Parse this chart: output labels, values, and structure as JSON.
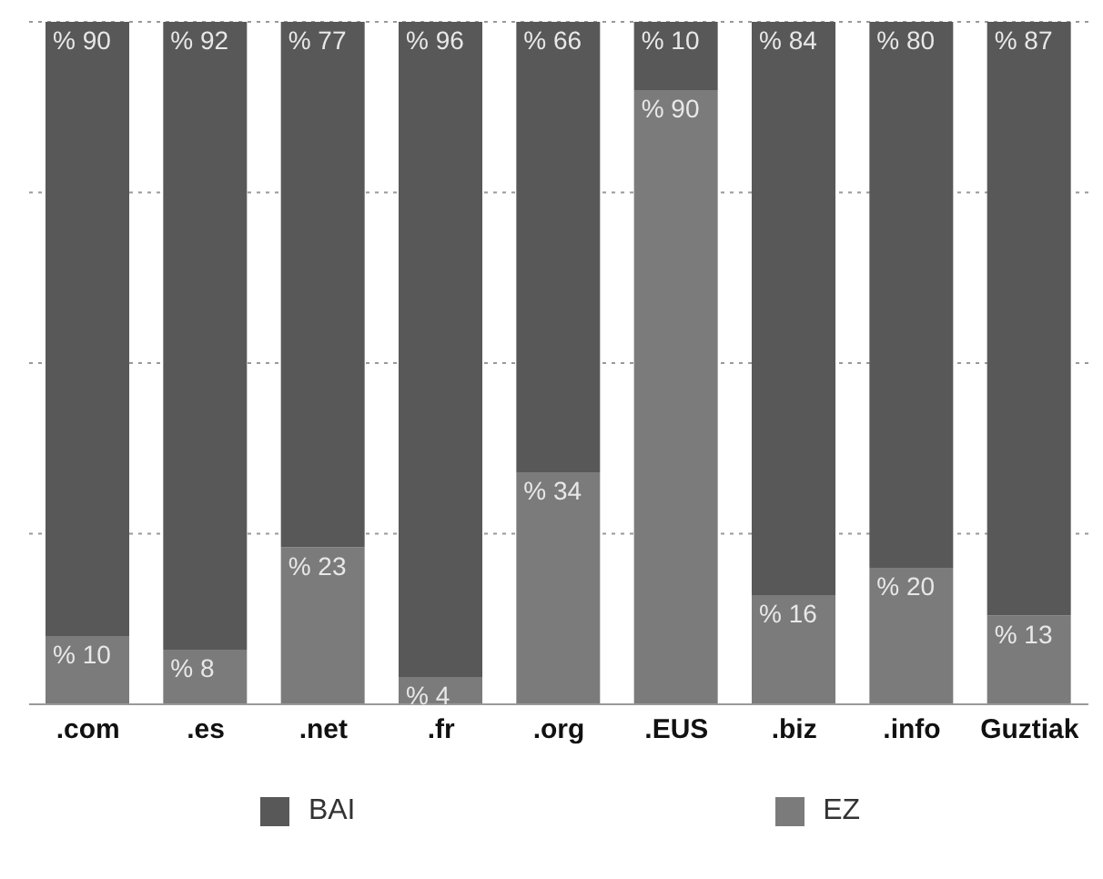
{
  "chart_data": {
    "type": "bar",
    "stacked": true,
    "categories": [
      ".com",
      ".es",
      ".net",
      ".fr",
      ".org",
      ".EUS",
      ".biz",
      ".info",
      "Guztiak"
    ],
    "series": [
      {
        "name": "EZ",
        "color": "#7b7b7b",
        "values": [
          10,
          8,
          23,
          4,
          34,
          90,
          16,
          20,
          13
        ],
        "value_labels": [
          "% 10",
          "% 8",
          "% 23",
          "% 4",
          "% 34",
          "% 90",
          "% 16",
          "% 20",
          "% 13"
        ]
      },
      {
        "name": "BAI",
        "color": "#585858",
        "values": [
          90,
          92,
          77,
          96,
          66,
          10,
          84,
          80,
          87
        ],
        "value_labels": [
          "% 90",
          "% 92",
          "% 77",
          "% 96",
          "% 66",
          "% 10",
          "% 84",
          "% 80",
          "% 87"
        ]
      }
    ],
    "ylim": [
      0,
      100
    ],
    "yticks": [
      0,
      25,
      50,
      75,
      100
    ],
    "tick_labels": "x",
    "grid": "y",
    "legend": "bottom"
  }
}
